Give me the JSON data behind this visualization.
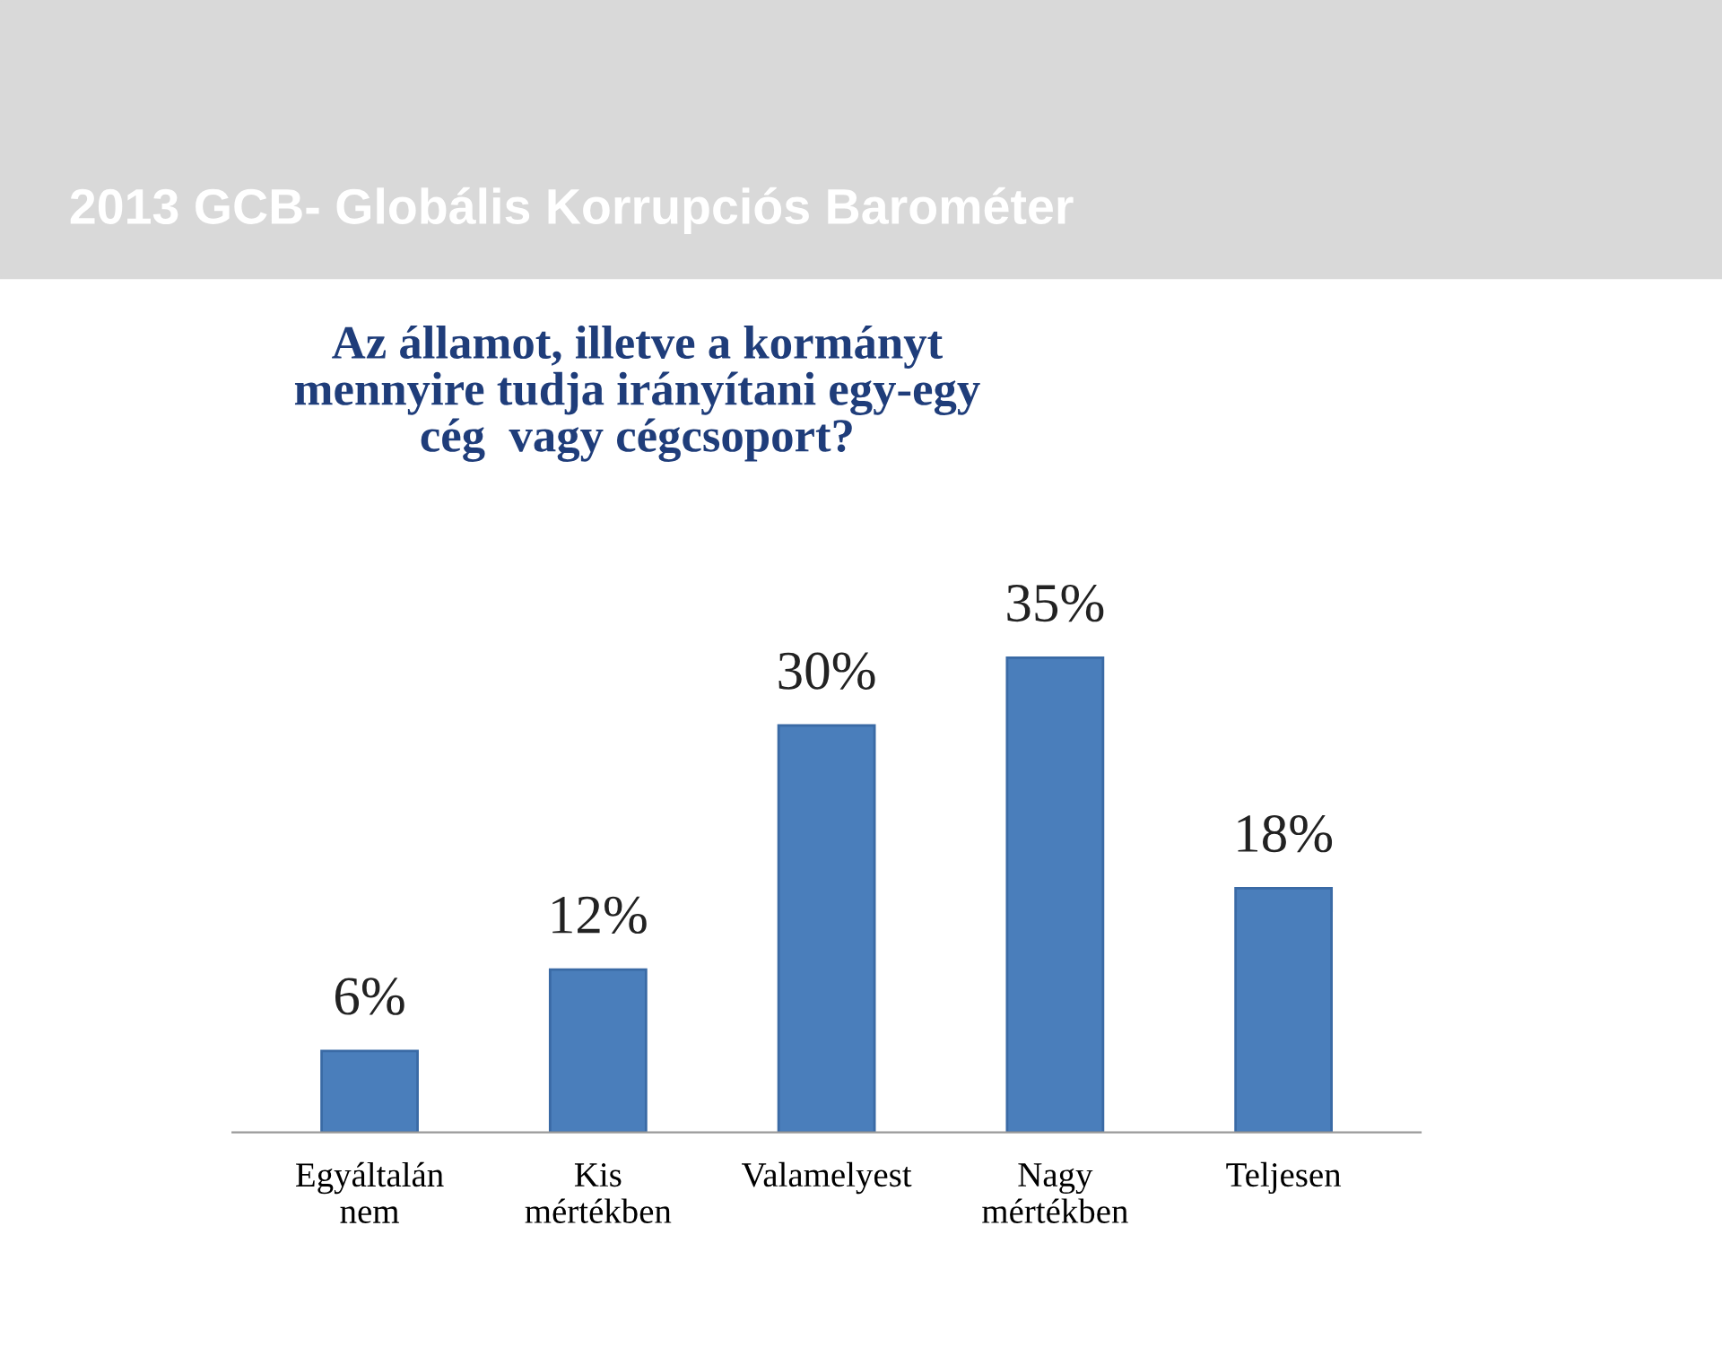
{
  "chart_data": {
    "type": "bar",
    "title": "2013 GCB- Globális Korrupciós Barométer",
    "subtitle": "Az államot, illetve a kormányt\nmennyire tudja irányítani egy-egy\ncég  vagy cégcsoport?",
    "categories": [
      "Egyáltalán\nnem",
      "Kis\nmértékben",
      "Valamelyest",
      "Nagy\nmértékben",
      "Teljesen"
    ],
    "values": [
      6,
      12,
      30,
      35,
      18
    ],
    "value_labels": [
      "6%",
      "12%",
      "30%",
      "35%",
      "18%"
    ],
    "color": "#4a7ebb",
    "grid": false,
    "legend": false
  }
}
